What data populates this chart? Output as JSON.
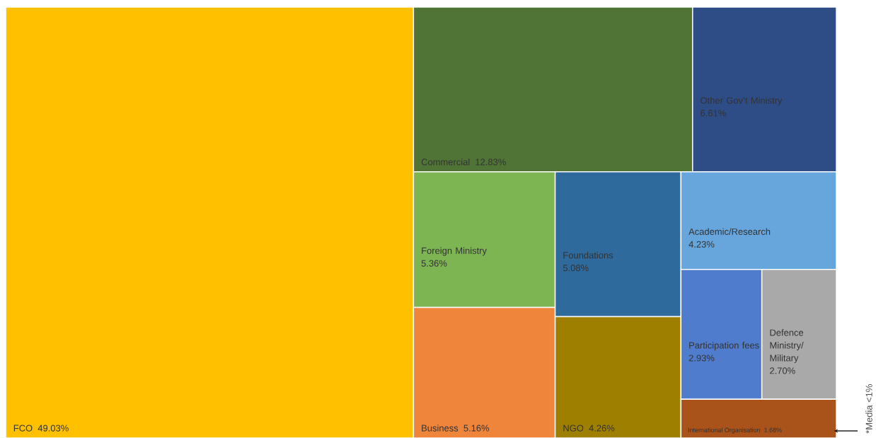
{
  "chart_data": {
    "type": "other",
    "categories": [
      "FCO",
      "Commercial",
      "Other Gov’t Ministry",
      "Foreign Ministry",
      "Business",
      "Foundations",
      "NGO",
      "Academic/Research",
      "Participation fees",
      "Defence Ministry/ Military",
      "International Organisation"
    ],
    "values": [
      49.03,
      12.83,
      6.61,
      5.36,
      5.16,
      5.08,
      4.26,
      4.23,
      2.93,
      2.7,
      1.68
    ],
    "value_labels": [
      "49.03%",
      "12.83%",
      "6.61%",
      "5.36%",
      "5.16%",
      "5.08%",
      "4.26%",
      "4.23%",
      "2.93%",
      "2.70%",
      "1.68%"
    ],
    "colors": [
      "#ffc000",
      "#4f7436",
      "#2e4d86",
      "#7db553",
      "#ee853a",
      "#2e6a9c",
      "#9f7f00",
      "#66a6dc",
      "#4f7ccc",
      "#a9a9a9",
      "#a9521a"
    ],
    "annotations": [
      "*Media <1%"
    ]
  }
}
